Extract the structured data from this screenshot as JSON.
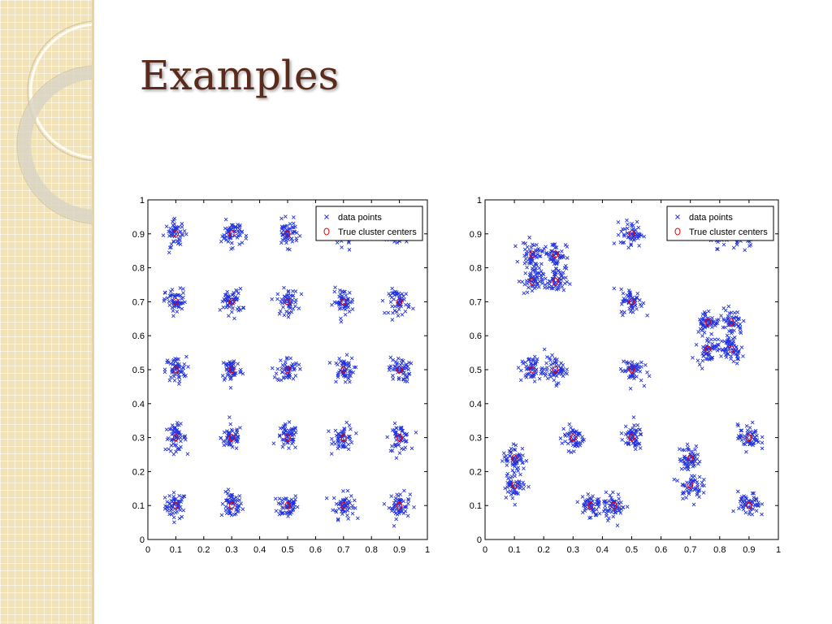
{
  "slide": {
    "title": "Examples"
  },
  "colors": {
    "data_points": "#2233dd",
    "centers": "#dd0000",
    "title": "#5a2b1c",
    "sidebar": "#f1e2b7"
  },
  "sidebar_icons": [
    "ring-decoration-icon",
    "ring-decoration-icon"
  ],
  "chart_data": [
    {
      "type": "scatter",
      "title": "",
      "xlabel": "",
      "ylabel": "",
      "xlim": [
        0,
        1
      ],
      "ylim": [
        0,
        1
      ],
      "xticks": [
        "0",
        "0.1",
        "0.2",
        "0.3",
        "0.4",
        "0.5",
        "0.6",
        "0.7",
        "0.8",
        "0.9",
        "1"
      ],
      "yticks": [
        "0",
        "0.1",
        "0.2",
        "0.3",
        "0.4",
        "0.5",
        "0.6",
        "0.7",
        "0.8",
        "0.9",
        "1"
      ],
      "grid": false,
      "legend_position": "top-right",
      "series": [
        {
          "name": "data points",
          "marker": "x",
          "cluster_spread": [
            0.025,
            0.025
          ],
          "cluster_centers": [
            [
              0.1,
              0.1
            ],
            [
              0.3,
              0.1
            ],
            [
              0.5,
              0.1
            ],
            [
              0.7,
              0.1
            ],
            [
              0.9,
              0.1
            ],
            [
              0.1,
              0.3
            ],
            [
              0.3,
              0.3
            ],
            [
              0.5,
              0.3
            ],
            [
              0.7,
              0.3
            ],
            [
              0.9,
              0.3
            ],
            [
              0.1,
              0.5
            ],
            [
              0.3,
              0.5
            ],
            [
              0.5,
              0.5
            ],
            [
              0.7,
              0.5
            ],
            [
              0.9,
              0.5
            ],
            [
              0.1,
              0.7
            ],
            [
              0.3,
              0.7
            ],
            [
              0.5,
              0.7
            ],
            [
              0.7,
              0.7
            ],
            [
              0.9,
              0.7
            ],
            [
              0.1,
              0.9
            ],
            [
              0.3,
              0.9
            ],
            [
              0.5,
              0.9
            ],
            [
              0.7,
              0.9
            ],
            [
              0.9,
              0.9
            ]
          ]
        },
        {
          "name": "True cluster centers",
          "marker": "o",
          "points": [
            [
              0.1,
              0.1
            ],
            [
              0.3,
              0.1
            ],
            [
              0.5,
              0.1
            ],
            [
              0.7,
              0.1
            ],
            [
              0.9,
              0.1
            ],
            [
              0.1,
              0.3
            ],
            [
              0.3,
              0.3
            ],
            [
              0.5,
              0.3
            ],
            [
              0.7,
              0.3
            ],
            [
              0.9,
              0.3
            ],
            [
              0.1,
              0.5
            ],
            [
              0.3,
              0.5
            ],
            [
              0.5,
              0.5
            ],
            [
              0.7,
              0.5
            ],
            [
              0.9,
              0.5
            ],
            [
              0.1,
              0.7
            ],
            [
              0.3,
              0.7
            ],
            [
              0.5,
              0.7
            ],
            [
              0.7,
              0.7
            ],
            [
              0.9,
              0.7
            ],
            [
              0.1,
              0.9
            ],
            [
              0.3,
              0.9
            ],
            [
              0.5,
              0.9
            ],
            [
              0.7,
              0.9
            ],
            [
              0.9,
              0.9
            ]
          ]
        }
      ]
    },
    {
      "type": "scatter",
      "title": "",
      "xlabel": "",
      "ylabel": "",
      "xlim": [
        0,
        1
      ],
      "ylim": [
        0,
        1
      ],
      "xticks": [
        "0",
        "0.1",
        "0.2",
        "0.3",
        "0.4",
        "0.5",
        "0.6",
        "0.7",
        "0.8",
        "0.9",
        "1"
      ],
      "yticks": [
        "0",
        "0.1",
        "0.2",
        "0.3",
        "0.4",
        "0.5",
        "0.6",
        "0.7",
        "0.8",
        "0.9",
        "1"
      ],
      "grid": false,
      "legend_position": "top-right",
      "series": [
        {
          "name": "data points",
          "marker": "x",
          "cluster_spread": [
            0.025,
            0.025
          ],
          "cluster_centers": [
            [
              0.16,
              0.84
            ],
            [
              0.24,
              0.84
            ],
            [
              0.16,
              0.76
            ],
            [
              0.24,
              0.76
            ],
            [
              0.5,
              0.9
            ],
            [
              0.8,
              0.9
            ],
            [
              0.88,
              0.9
            ],
            [
              0.5,
              0.7
            ],
            [
              0.76,
              0.64
            ],
            [
              0.84,
              0.64
            ],
            [
              0.76,
              0.56
            ],
            [
              0.84,
              0.56
            ],
            [
              0.16,
              0.5
            ],
            [
              0.24,
              0.5
            ],
            [
              0.5,
              0.5
            ],
            [
              0.3,
              0.3
            ],
            [
              0.5,
              0.3
            ],
            [
              0.9,
              0.3
            ],
            [
              0.1,
              0.24
            ],
            [
              0.1,
              0.16
            ],
            [
              0.7,
              0.24
            ],
            [
              0.7,
              0.16
            ],
            [
              0.36,
              0.1
            ],
            [
              0.44,
              0.1
            ],
            [
              0.9,
              0.1
            ]
          ]
        },
        {
          "name": "True cluster centers",
          "marker": "o",
          "points": [
            [
              0.16,
              0.84
            ],
            [
              0.24,
              0.84
            ],
            [
              0.16,
              0.76
            ],
            [
              0.24,
              0.76
            ],
            [
              0.5,
              0.9
            ],
            [
              0.5,
              0.7
            ],
            [
              0.76,
              0.64
            ],
            [
              0.84,
              0.64
            ],
            [
              0.76,
              0.56
            ],
            [
              0.84,
              0.56
            ],
            [
              0.16,
              0.5
            ],
            [
              0.24,
              0.5
            ],
            [
              0.5,
              0.5
            ],
            [
              0.3,
              0.3
            ],
            [
              0.5,
              0.3
            ],
            [
              0.9,
              0.3
            ],
            [
              0.1,
              0.24
            ],
            [
              0.1,
              0.16
            ],
            [
              0.7,
              0.24
            ],
            [
              0.7,
              0.16
            ],
            [
              0.36,
              0.1
            ],
            [
              0.44,
              0.1
            ],
            [
              0.9,
              0.1
            ]
          ]
        }
      ]
    }
  ]
}
